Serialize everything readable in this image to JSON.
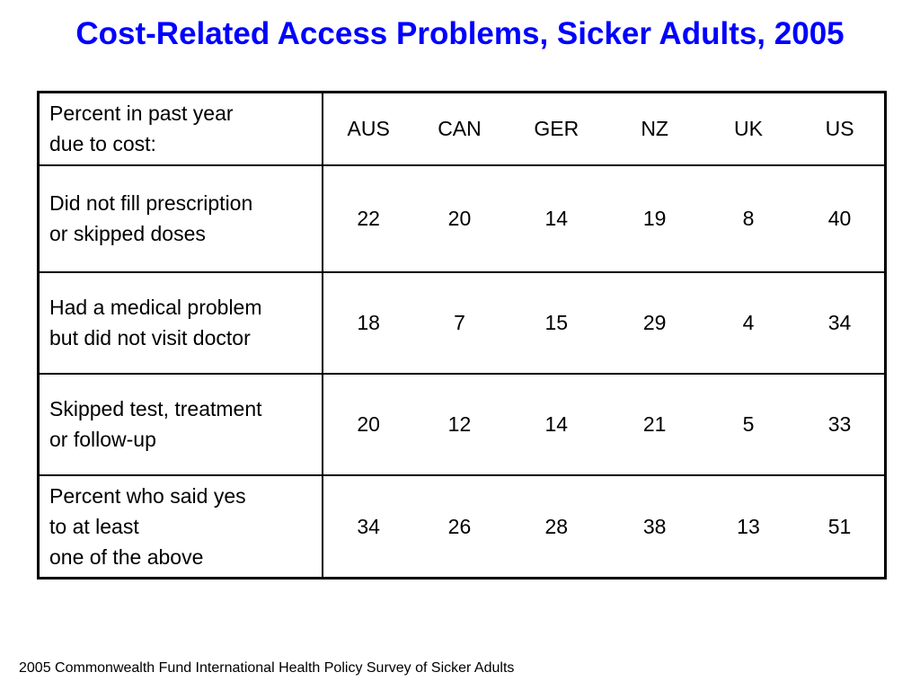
{
  "title": "Cost-Related Access Problems, Sicker Adults, 2005",
  "source": "2005 Commonwealth Fund International Health Policy Survey of Sicker Adults",
  "colors": {
    "title": "#0000ff",
    "text": "#000000",
    "border": "#000000"
  },
  "chart_data": {
    "type": "table",
    "title": "Cost-Related Access Problems, Sicker Adults, 2005",
    "header_label": [
      "Percent in past year",
      "due to cost:"
    ],
    "columns": [
      "AUS",
      "CAN",
      "GER",
      "NZ",
      "UK",
      "US"
    ],
    "rows": [
      {
        "label": [
          "Did not fill prescription",
          "or skipped doses"
        ],
        "values": [
          22,
          20,
          14,
          19,
          8,
          40
        ]
      },
      {
        "label": [
          "Had a medical problem",
          "but did not visit doctor"
        ],
        "values": [
          18,
          7,
          15,
          29,
          4,
          34
        ]
      },
      {
        "label": [
          "Skipped test, treatment",
          "or follow-up"
        ],
        "values": [
          20,
          12,
          14,
          21,
          5,
          33
        ]
      },
      {
        "label": [
          "Percent who said yes",
          "to at least",
          "one of the above"
        ],
        "values": [
          34,
          26,
          28,
          38,
          13,
          51
        ]
      }
    ]
  }
}
